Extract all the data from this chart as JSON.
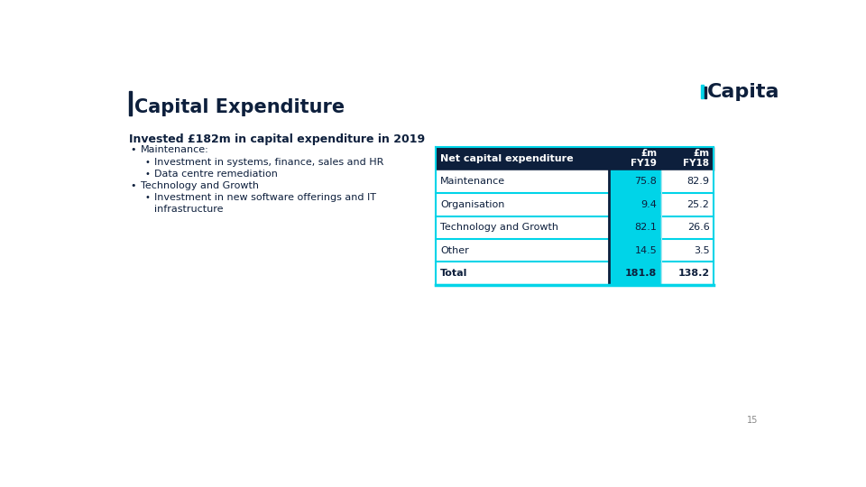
{
  "title": "Capital Expenditure",
  "subtitle": "Invested £182m in capital expenditure in 2019",
  "bullets": [
    {
      "level": 1,
      "text": "Maintenance:"
    },
    {
      "level": 2,
      "text": "Investment in systems, finance, sales and HR"
    },
    {
      "level": 2,
      "text": "Data centre remediation"
    },
    {
      "level": 1,
      "text": "Technology and Growth"
    },
    {
      "level": 2,
      "text": "Investment in new software offerings and IT\ninfrastructure"
    }
  ],
  "table_header": [
    "Net capital expenditure",
    "£m\nFY19",
    "£m\nFY18"
  ],
  "table_rows": [
    [
      "Maintenance",
      "75.8",
      "82.9"
    ],
    [
      "Organisation",
      "9.4",
      "25.2"
    ],
    [
      "Technology and Growth",
      "82.1",
      "26.6"
    ],
    [
      "Other",
      "14.5",
      "3.5"
    ],
    [
      "Total",
      "181.8",
      "138.2"
    ]
  ],
  "header_bg": "#0d1f3c",
  "header_text": "#ffffff",
  "fy19_col_bg": "#00d4e8",
  "row_separator": "#00d4e8",
  "page_bg": "#ffffff",
  "title_color": "#0d1f3c",
  "title_bar_color": "#0d1f3c",
  "body_text_color": "#0d1f3c",
  "page_number": "15",
  "capita_text_color": "#0d1f3c",
  "capita_bar1_color": "#00d4e8",
  "capita_bar2_color": "#0d1f3c"
}
